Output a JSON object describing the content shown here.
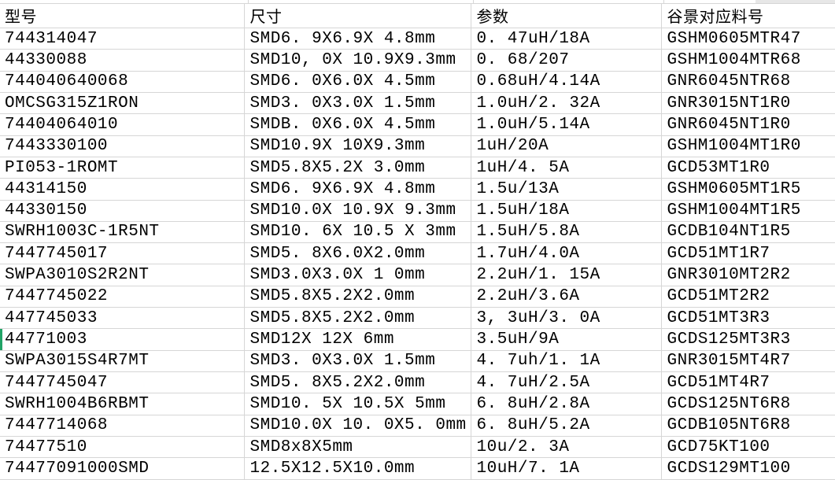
{
  "table": {
    "headers": [
      "型号",
      "尺寸",
      "参数",
      "谷景对应料号"
    ],
    "rows": [
      {
        "model": "744314047",
        "size": "SMD6. 9X6.9X 4.8mm",
        "params": "0. 47uH/18A",
        "gujing": "GSHM0605MTR47",
        "marked": false
      },
      {
        "model": "44330088",
        "size": "SMD10, 0X 10.9X9.3mm",
        "params": "0. 68/207",
        "gujing": "GSHM1004MTR68",
        "marked": false
      },
      {
        "model": "744040640068",
        "size": "SMD6. 0X6.0X 4.5mm",
        "params": "0.68uH/4.14A",
        "gujing": "GNR6045NTR68",
        "marked": false
      },
      {
        "model": "OMCSG315Z1RON",
        "size": "SMD3. 0X3.0X 1.5mm",
        "params": "1.0uH/2. 32A",
        "gujing": "GNR3015NT1R0",
        "marked": false
      },
      {
        "model": "74404064010",
        "size": "SMDB. 0X6.0X 4.5mm",
        "params": "1.0uH/5.14A",
        "gujing": "GNR6045NT1R0",
        "marked": false
      },
      {
        "model": "7443330100",
        "size": "SMD10.9X 10X9.3mm",
        "params": "1uH/20A",
        "gujing": "GSHM1004MT1R0",
        "marked": false
      },
      {
        "model": "PI053-1ROMT",
        "size": "SMD5.8X5.2X 3.0mm",
        "params": "1uH/4. 5A",
        "gujing": "GCD53MT1R0",
        "marked": false
      },
      {
        "model": "44314150",
        "size": "SMD6. 9X6.9X 4.8mm",
        "params": "1.5u/13A",
        "gujing": "GSHM0605MT1R5",
        "marked": false
      },
      {
        "model": "44330150",
        "size": "SMD10.0X 10.9X 9.3mm",
        "params": "1.5uH/18A",
        "gujing": "GSHM1004MT1R5",
        "marked": false
      },
      {
        "model": "SWRH1003C-1R5NT",
        "size": "SMD10. 6X 10.5 X 3mm",
        "params": "1.5uH/5.8A",
        "gujing": "GCDB104NT1R5",
        "marked": false
      },
      {
        "model": "7447745017",
        "size": "SMD5. 8X6.0X2.0mm",
        "params": "1.7uH/4.0A",
        "gujing": "GCD51MT1R7",
        "marked": false
      },
      {
        "model": "SWPA3010S2R2NT",
        "size": "SMD3.0X3.0X 1 0mm",
        "params": "2.2uH/1. 15A",
        "gujing": "GNR3010MT2R2",
        "marked": false
      },
      {
        "model": "7447745022",
        "size": "SMD5.8X5.2X2.0mm",
        "params": "2.2uH/3.6A",
        "gujing": "GCD51MT2R2",
        "marked": false
      },
      {
        "model": "447745033",
        "size": "SMD5.8X5.2X2.0mm",
        "params": "3, 3uH/3. 0A",
        "gujing": "GCD51MT3R3",
        "marked": false
      },
      {
        "model": "44771003",
        "size": "SMD12X 12X 6mm",
        "params": "3.5uH/9A",
        "gujing": "GCDS125MT3R3",
        "marked": true
      },
      {
        "model": "SWPA3015S4R7MT",
        "size": "SMD3. 0X3.0X 1.5mm",
        "params": "4. 7uh/1. 1A",
        "gujing": "GNR3015MT4R7",
        "marked": false
      },
      {
        "model": "7447745047",
        "size": "SMD5. 8X5.2X2.0mm",
        "params": "4. 7uH/2.5A",
        "gujing": "GCD51MT4R7",
        "marked": false
      },
      {
        "model": "SWRH1004B6RBMT",
        "size": "SMD10. 5X 10.5X 5mm",
        "params": "6. 8uH/2.8A",
        "gujing": "GCDS125NT6R8",
        "marked": false
      },
      {
        "model": "7447714068",
        "size": "SMD10.0X 10. 0X5. 0mm",
        "params": "6. 8uH/5.2A",
        "gujing": "GCDB105NT6R8",
        "marked": false
      },
      {
        "model": "74477510",
        "size": "SMD8x8X5mm",
        "params": "10u/2. 3A",
        "gujing": "GCD75KT100",
        "marked": false
      },
      {
        "model": "74477091000SMD",
        "size": "12.5X12.5X10.0mm",
        "params": "10uH/7. 1A",
        "gujing": "GCDS129MT100",
        "marked": false
      }
    ]
  },
  "colors": {
    "gridline": "#d6d6d6",
    "row_marker_green": "#21a366",
    "top_right_patch": "#e7e7e7",
    "background": "#ffffff",
    "text": "#000000"
  }
}
